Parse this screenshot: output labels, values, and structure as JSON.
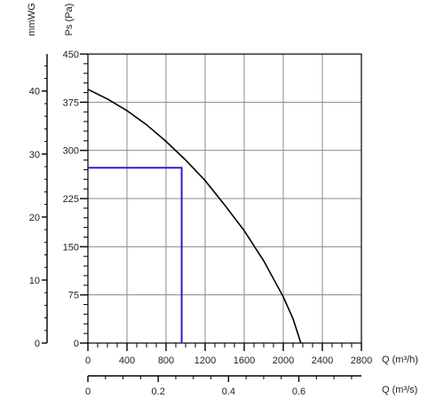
{
  "chart_data": {
    "type": "line",
    "y_primary": {
      "label": "Ps (Pa)",
      "ticks": [
        "0",
        "75",
        "150",
        "225",
        "300",
        "375",
        "450"
      ],
      "range": [
        0,
        450
      ]
    },
    "y_secondary": {
      "label": "mmWG",
      "ticks": [
        "0",
        "10",
        "20",
        "30",
        "40"
      ],
      "range": [
        0,
        45.87
      ]
    },
    "x_primary": {
      "label": "Q (m³/h)",
      "ticks": [
        "0",
        "400",
        "800",
        "1200",
        "1600",
        "2000",
        "2400",
        "2800"
      ],
      "range": [
        0,
        2800
      ]
    },
    "x_secondary": {
      "label": "Q (m³/s)",
      "ticks": [
        "0",
        "0.2",
        "0.4",
        "0.6"
      ],
      "range": [
        0,
        0.778
      ]
    },
    "grid": true,
    "series": [
      {
        "x": [
          0,
          200,
          400,
          600,
          800,
          1000,
          1200,
          1400,
          1600,
          1800,
          2000,
          2100,
          2180
        ],
        "y": [
          395,
          380,
          362,
          340,
          314,
          285,
          253,
          215,
          175,
          128,
          72,
          38,
          0
        ]
      }
    ],
    "operating_point": {
      "x": 960,
      "y": 273
    },
    "colors": {
      "curve": "#000000",
      "operating_point": "#2a1fd1",
      "grid": "#8a8a8a"
    }
  }
}
